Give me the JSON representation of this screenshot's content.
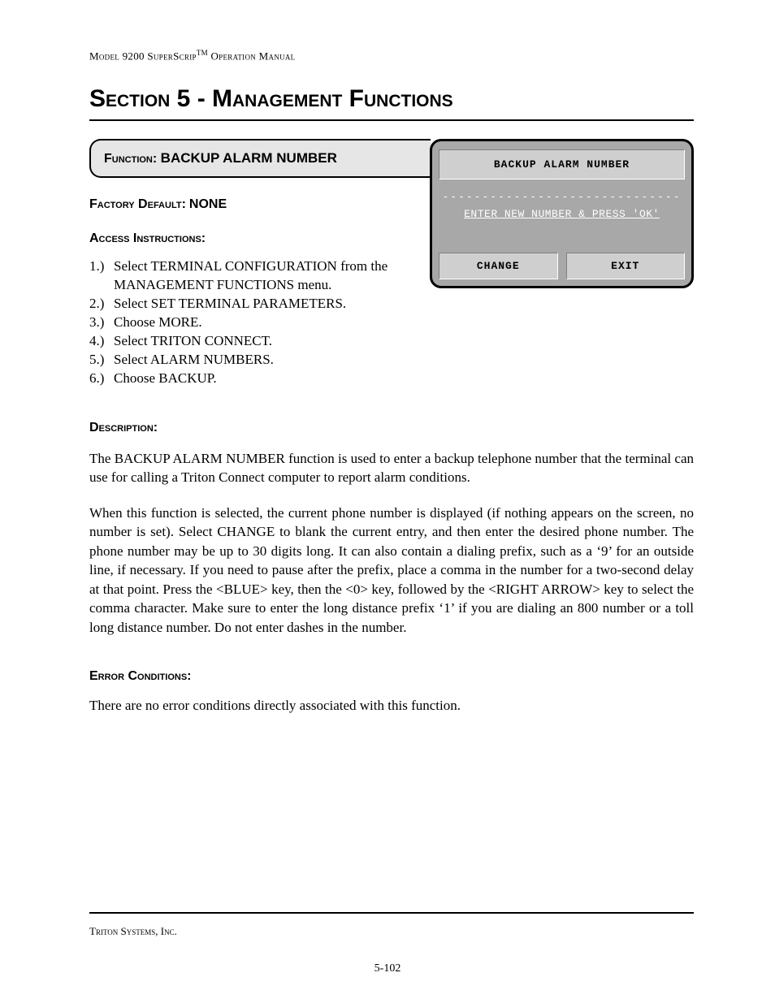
{
  "running_head": {
    "model": "Model 9200 SuperScrip",
    "tm": "TM",
    "tail": " Operation Manual"
  },
  "section_title": "Section 5 - Management Functions",
  "function_box": {
    "label": "Function:",
    "name": "BACKUP ALARM NUMBER"
  },
  "factory_default": {
    "label": "Factory Default:",
    "value": "NONE"
  },
  "access_label": "Access Instructions:",
  "steps": [
    {
      "n": "1.)",
      "t": "Select TERMINAL CONFIGURATION from the MANAGEMENT FUNCTIONS menu."
    },
    {
      "n": "2.)",
      "t": "Select SET TERMINAL PARAMETERS."
    },
    {
      "n": "3.)",
      "t": "Choose MORE."
    },
    {
      "n": "4.)",
      "t": "Select TRITON CONNECT."
    },
    {
      "n": "5.)",
      "t": "Select ALARM NUMBERS."
    },
    {
      "n": "6.)",
      "t": "Choose BACKUP."
    }
  ],
  "description_label": "Description:",
  "description_p1": "The BACKUP ALARM NUMBER function is used to enter a backup telephone number that the terminal can use for calling a Triton Connect computer to report alarm conditions.",
  "description_p2": "When this function is selected, the current phone number is displayed (if nothing appears on the screen, no number is set).  Select CHANGE to blank the current entry, and then enter the desired phone number.  The phone number may be up to 30 digits long.  It can also contain a dialing prefix, such as a ‘9’ for an outside line, if necessary.  If you need to pause after the prefix, place a comma in the number for a two-second delay at that point.  Press the <BLUE> key, then the <0> key, followed by the <RIGHT ARROW> key to select the comma character.  Make sure to enter the long distance prefix ‘1’ if you are dialing an 800 number or a toll long distance number.  Do not enter dashes in the number.",
  "error_label": "Error Conditions:",
  "error_text": "There are no error conditions directly associated with this function.",
  "terminal": {
    "title": "BACKUP ALARM NUMBER",
    "dashes": "------------------------------",
    "instruction": "ENTER NEW NUMBER & PRESS 'OK'",
    "btn_change": "CHANGE",
    "btn_exit": "EXIT"
  },
  "footer": {
    "company": "Triton Systems, Inc.",
    "page": "5-102"
  },
  "colors": {
    "page_bg": "#ffffff",
    "func_box_bg": "#e6e6e6",
    "terminal_bg": "#a8a8a8",
    "terminal_panel": "#cfcfcf",
    "terminal_text_light": "#ffffff",
    "rule": "#000000"
  }
}
